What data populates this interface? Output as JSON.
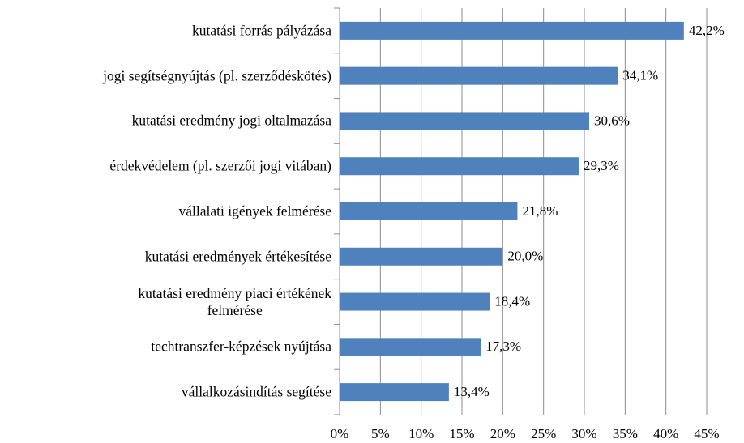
{
  "chart_data": {
    "type": "bar",
    "orientation": "horizontal",
    "categories": [
      "kutatási forrás pályázása",
      "jogi segítségnyújtás (pl. szerződéskötés)",
      "kutatási eredmény jogi oltalmazása",
      "érdekvédelem (pl. szerzői jogi vitában)",
      "vállalati igények felmérése",
      "kutatási eredmények értékesítése",
      "kutatási eredmény piaci értékének\nfelmérése",
      "techtranszfer-képzések nyújtása",
      "vállalkozásindítás segítése"
    ],
    "values": [
      42.2,
      34.1,
      30.6,
      29.3,
      21.8,
      20.0,
      18.4,
      17.3,
      13.4
    ],
    "value_labels": [
      "42,2%",
      "34,1%",
      "30,6%",
      "29,3%",
      "21,8%",
      "20,0%",
      "18,4%",
      "17,3%",
      "13,4%"
    ],
    "color": "#4f81bd",
    "xlim": [
      0,
      45
    ],
    "xticks": [
      {
        "value": 0,
        "label": "0%"
      },
      {
        "value": 5,
        "label": "5%"
      },
      {
        "value": 10,
        "label": "10%"
      },
      {
        "value": 15,
        "label": "15%"
      },
      {
        "value": 20,
        "label": "20%"
      },
      {
        "value": 25,
        "label": "25%"
      },
      {
        "value": 30,
        "label": "30%"
      },
      {
        "value": 35,
        "label": "35%"
      },
      {
        "value": 40,
        "label": "40%"
      },
      {
        "value": 45,
        "label": "45%"
      }
    ],
    "grid": true
  }
}
